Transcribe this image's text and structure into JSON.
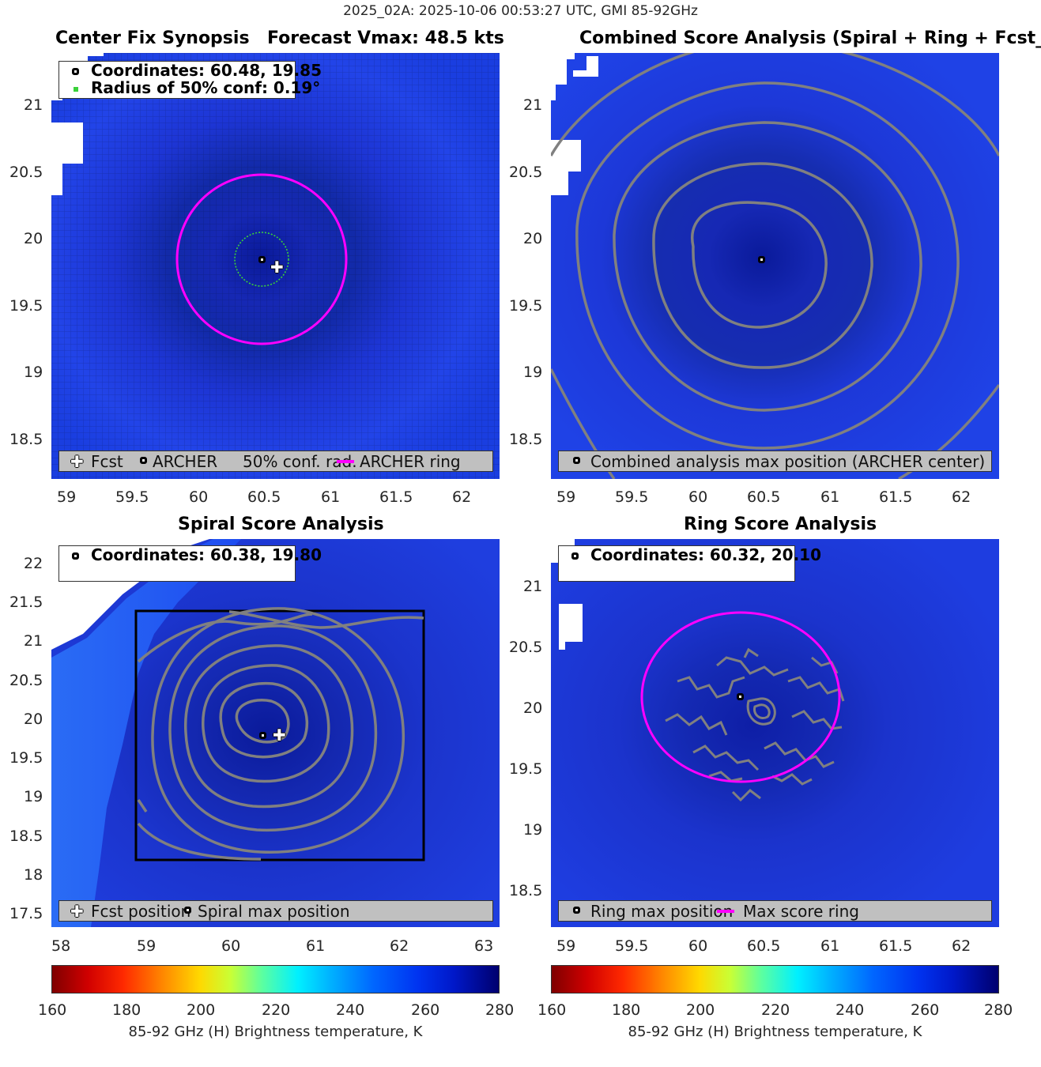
{
  "suptitle": "2025_02A: 2025-10-06 00:53:27 UTC, GMI 85-92GHz",
  "panels": {
    "p1": {
      "title_left": "Center Fix Synopsis",
      "title_right": "Forecast Vmax: 48.5 kts",
      "info_line1": "Coordinates: 60.48, 19.85",
      "info_line2": "Radius of 50% conf: 0.19°",
      "legend": {
        "fcst": "Fcst",
        "archer": "ARCHER",
        "conf": "50% conf. rad.",
        "ring": "ARCHER ring"
      }
    },
    "p2": {
      "title": "Combined Score Analysis (Spiral + Ring + Fcst_Pe",
      "legend": {
        "max": "Combined analysis max position (ARCHER center)"
      }
    },
    "p3": {
      "title": "Spiral Score Analysis",
      "info_line1": "Coordinates: 60.38, 19.80",
      "legend": {
        "fcst": "Fcst position",
        "spiral": "Spiral max position"
      }
    },
    "p4": {
      "title": "Ring Score Analysis",
      "info_line1": "Coordinates: 60.32, 20.10",
      "legend": {
        "ring_max": "Ring max position",
        "ring": "Max score ring"
      }
    }
  },
  "colorbar": {
    "label": "85-92 GHz (H) Brightness temperature, K",
    "ticks": [
      "160",
      "180",
      "200",
      "220",
      "240",
      "260",
      "280"
    ],
    "range": [
      160,
      280
    ],
    "colormap": "jet_reversed"
  },
  "colors": {
    "ring": "#ff00ff",
    "contour": "#808080",
    "background_tb": "#1e35e6",
    "eye": "#0a1a9a",
    "conf_circle": "#3ad13a"
  },
  "chart_data": [
    {
      "type": "heatmap",
      "title": "Center Fix Synopsis",
      "subtitle": "Forecast Vmax: 48.5 kts",
      "x_ticks": [
        "59",
        "59.5",
        "60",
        "60.5",
        "61",
        "61.5",
        "62"
      ],
      "y_ticks": [
        "21",
        "20.5",
        "20",
        "19.5",
        "19",
        "18.5"
      ],
      "xlim": [
        58.9,
        62.3
      ],
      "ylim": [
        18.2,
        21.4
      ],
      "archer_center": [
        60.48,
        19.85
      ],
      "forecast_position": [
        60.58,
        19.79
      ],
      "conf_radius_deg": 0.19,
      "archer_ring_radius_deg": 0.6,
      "grid": true
    },
    {
      "type": "heatmap",
      "title": "Combined Score Analysis (Spiral + Ring + Fcst_Pe",
      "x_ticks": [
        "59",
        "59.5",
        "60",
        "60.5",
        "61",
        "61.5",
        "62"
      ],
      "y_ticks": [
        "21",
        "20.5",
        "20",
        "19.5",
        "19",
        "18.5"
      ],
      "xlim": [
        58.9,
        62.3
      ],
      "ylim": [
        18.2,
        21.4
      ],
      "max_position": [
        60.48,
        19.85
      ],
      "contours": "concentric score contours"
    },
    {
      "type": "heatmap",
      "title": "Spiral Score Analysis",
      "x_ticks": [
        "58",
        "59",
        "60",
        "61",
        "62",
        "63"
      ],
      "y_ticks": [
        "22",
        "21.5",
        "21",
        "20.5",
        "20",
        "19.5",
        "19",
        "18.5",
        "18",
        "17.5"
      ],
      "xlim": [
        58,
        63.2
      ],
      "ylim": [
        17.4,
        22.3
      ],
      "spiral_max_position": [
        60.38,
        19.8
      ],
      "forecast_position": [
        60.58,
        19.79
      ],
      "search_box": {
        "x": [
          58.9,
          62.3
        ],
        "y": [
          18.2,
          21.4
        ]
      }
    },
    {
      "type": "heatmap",
      "title": "Ring Score Analysis",
      "x_ticks": [
        "59",
        "59.5",
        "60",
        "60.5",
        "61",
        "61.5",
        "62"
      ],
      "y_ticks": [
        "21",
        "20.5",
        "20",
        "19.5",
        "19",
        "18.5"
      ],
      "xlim": [
        58.9,
        62.3
      ],
      "ylim": [
        18.2,
        21.4
      ],
      "ring_max_position": [
        60.32,
        20.1
      ],
      "max_score_ring_radius_deg": 0.7
    }
  ]
}
